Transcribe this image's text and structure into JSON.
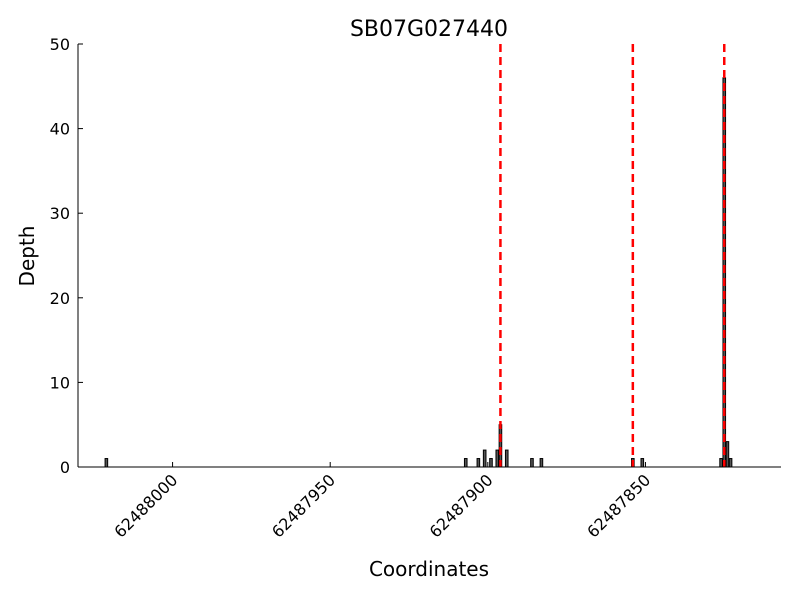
{
  "chart_data": {
    "type": "bar",
    "title": "SB07G027440",
    "xlabel": "Coordinates",
    "ylabel": "Depth",
    "xlim": [
      62488030,
      62487807
    ],
    "ylim": [
      0,
      50
    ],
    "x_inverted": true,
    "grid": false,
    "yticks": [
      0,
      10,
      20,
      30,
      40,
      50
    ],
    "xticks": [
      62488000,
      62487950,
      62487900,
      62487850
    ],
    "bar_color": "#555555",
    "marker_color": "#ff0000",
    "bars": [
      {
        "x": 62488021,
        "y": 1
      },
      {
        "x": 62487907,
        "y": 1
      },
      {
        "x": 62487903,
        "y": 1
      },
      {
        "x": 62487901,
        "y": 2
      },
      {
        "x": 62487899,
        "y": 1
      },
      {
        "x": 62487897,
        "y": 2
      },
      {
        "x": 62487896,
        "y": 5
      },
      {
        "x": 62487894,
        "y": 2
      },
      {
        "x": 62487886,
        "y": 1
      },
      {
        "x": 62487883,
        "y": 1
      },
      {
        "x": 62487854,
        "y": 1
      },
      {
        "x": 62487851,
        "y": 1
      },
      {
        "x": 62487826,
        "y": 1
      },
      {
        "x": 62487825,
        "y": 46
      },
      {
        "x": 62487824,
        "y": 3
      },
      {
        "x": 62487823,
        "y": 1
      }
    ],
    "vlines": [
      62487896,
      62487854,
      62487825
    ]
  }
}
